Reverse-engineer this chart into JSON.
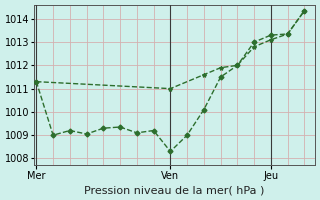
{
  "bg_color": "#cff0eb",
  "grid_color_h": "#d4b0b0",
  "grid_color_v": "#d4b0b0",
  "line_color": "#2d6e2d",
  "xlabel": "Pression niveau de la mer( hPa )",
  "xlabel_fontsize": 8,
  "ylim": [
    1007.7,
    1014.6
  ],
  "yticks": [
    1008,
    1009,
    1010,
    1011,
    1012,
    1013,
    1014
  ],
  "ytick_fontsize": 7,
  "xtick_fontsize": 7,
  "xtick_labels": [
    "Mer",
    "Ven",
    "Jeu"
  ],
  "xtick_positions": [
    0.0,
    0.5,
    0.875
  ],
  "vline_positions": [
    0.0,
    0.5,
    0.875
  ],
  "line1_x": [
    0.0,
    0.0625,
    0.125,
    0.1875,
    0.25,
    0.3125,
    0.375,
    0.4375,
    0.5,
    0.5625,
    0.625,
    0.6875,
    0.75,
    0.8125,
    0.875,
    0.9375,
    1.0
  ],
  "line1_y": [
    1011.3,
    1009.0,
    1009.2,
    1009.05,
    1009.3,
    1009.35,
    1009.1,
    1009.2,
    1008.3,
    1009.0,
    1010.1,
    1011.5,
    1012.0,
    1013.0,
    1013.3,
    1013.35,
    1014.35
  ],
  "line2_x": [
    0.0,
    0.5,
    0.625,
    0.6875,
    0.75,
    0.8125,
    0.875,
    0.9375,
    1.0
  ],
  "line2_y": [
    1011.3,
    1011.0,
    1011.6,
    1011.9,
    1012.0,
    1012.8,
    1013.1,
    1013.35,
    1014.35
  ]
}
